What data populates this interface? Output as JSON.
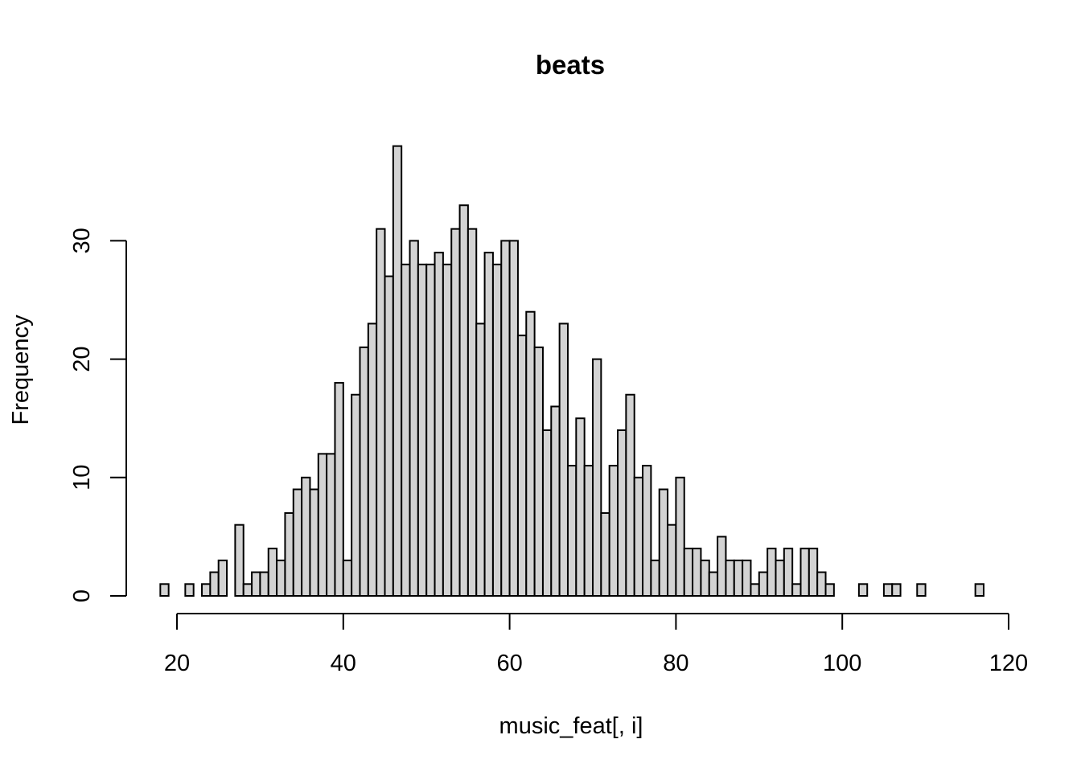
{
  "chart_data": {
    "type": "bar",
    "title": "beats",
    "xlabel": "music_feat[, i]",
    "ylabel": "Frequency",
    "bin_width": 1,
    "bin_starts": [
      18,
      19,
      20,
      21,
      22,
      23,
      24,
      25,
      26,
      27,
      28,
      29,
      30,
      31,
      32,
      33,
      34,
      35,
      36,
      37,
      38,
      39,
      40,
      41,
      42,
      43,
      44,
      45,
      46,
      47,
      48,
      49,
      50,
      51,
      52,
      53,
      54,
      55,
      56,
      57,
      58,
      59,
      60,
      61,
      62,
      63,
      64,
      65,
      66,
      67,
      68,
      69,
      70,
      71,
      72,
      73,
      74,
      75,
      76,
      77,
      78,
      79,
      80,
      81,
      82,
      83,
      84,
      85,
      86,
      87,
      88,
      89,
      90,
      91,
      92,
      93,
      94,
      95,
      96,
      97,
      98,
      99,
      100,
      101,
      102,
      103,
      104,
      105,
      106,
      107,
      108,
      109,
      110,
      111,
      112,
      113,
      114,
      115,
      116
    ],
    "values": [
      1,
      0,
      0,
      1,
      0,
      1,
      2,
      3,
      0,
      6,
      1,
      2,
      2,
      4,
      3,
      7,
      9,
      10,
      9,
      12,
      12,
      18,
      3,
      17,
      21,
      23,
      31,
      27,
      38,
      28,
      30,
      28,
      28,
      29,
      28,
      31,
      33,
      31,
      23,
      29,
      28,
      30,
      30,
      22,
      24,
      21,
      14,
      16,
      23,
      11,
      15,
      11,
      20,
      7,
      11,
      14,
      17,
      10,
      11,
      3,
      9,
      6,
      10,
      4,
      4,
      3,
      2,
      5,
      3,
      3,
      3,
      1,
      2,
      4,
      3,
      4,
      1,
      4,
      4,
      2,
      1,
      0,
      0,
      0,
      1,
      0,
      0,
      1,
      1,
      0,
      0,
      1,
      0,
      0,
      0,
      0,
      0,
      0,
      1
    ],
    "x_ticks": [
      20,
      40,
      60,
      80,
      100,
      120
    ],
    "y_ticks": [
      0,
      10,
      20,
      30
    ],
    "xlim": [
      20,
      120
    ],
    "ylim": [
      0,
      38
    ],
    "grid": false,
    "legend": "none"
  }
}
